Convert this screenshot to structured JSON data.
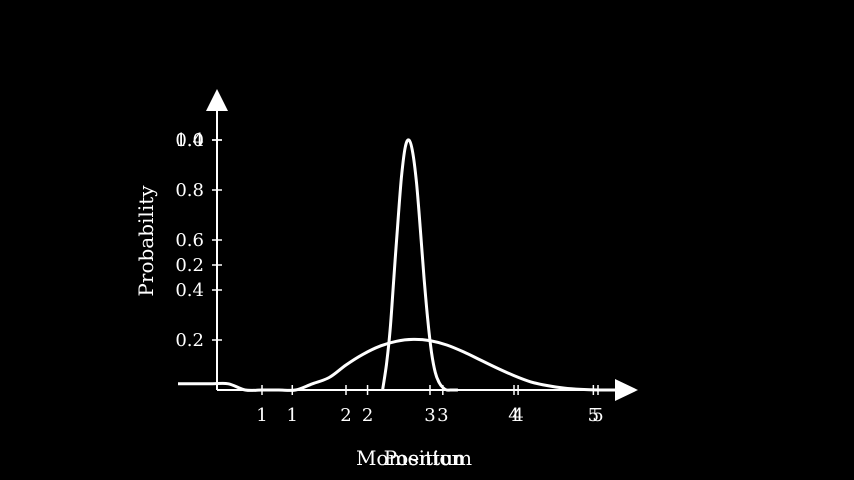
{
  "chart_data": [
    {
      "type": "line",
      "title": "",
      "ylabel": "Probability",
      "xlabel": "Position",
      "ylim": [
        0,
        1.0
      ],
      "xlim": [
        0.5,
        6.0
      ],
      "grid": false,
      "x_tick_labels": [
        {
          "value": 1.5,
          "label": "1"
        },
        {
          "value": 2.5,
          "label": "2"
        },
        {
          "value": 3.5,
          "label": "3"
        },
        {
          "value": 4.5,
          "label": "4"
        },
        {
          "value": 5.5,
          "label": "5"
        }
      ],
      "y_tick_labels": [
        {
          "value": 0.2,
          "label": "0.2"
        },
        {
          "value": 0.4,
          "label": "0.4"
        },
        {
          "value": 0.6,
          "label": "0.6"
        },
        {
          "value": 0.8,
          "label": "0.8"
        },
        {
          "value": 1.0,
          "label": "1.0"
        }
      ],
      "series": [
        {
          "x": [
            2.7,
            2.75,
            2.8,
            2.85,
            2.9,
            2.95,
            3.0,
            3.05,
            3.1,
            3.15,
            3.2,
            3.25,
            3.3,
            3.35,
            3.4,
            3.45,
            3.5,
            3.55,
            3.6,
            3.65,
            3.7
          ],
          "y": [
            0.0,
            0.1,
            0.24,
            0.45,
            0.66,
            0.85,
            0.97,
            1.0,
            0.95,
            0.83,
            0.65,
            0.45,
            0.28,
            0.15,
            0.07,
            0.03,
            0.01,
            0.0,
            0.0,
            0.0,
            0.0
          ]
        }
      ]
    },
    {
      "type": "line",
      "title": "",
      "ylabel": "",
      "xlabel": "Momentum",
      "ylim": [
        0,
        0.4
      ],
      "xlim": [
        0.5,
        6.0
      ],
      "grid": false,
      "x_tick_labels": [
        {
          "value": 1.5,
          "label": "1"
        },
        {
          "value": 2.5,
          "label": "2"
        },
        {
          "value": 3.5,
          "label": "3"
        },
        {
          "value": 4.5,
          "label": "4"
        },
        {
          "value": 5.5,
          "label": "5"
        }
      ],
      "y_tick_labels": [
        {
          "value": 0.2,
          "label": "0.2"
        },
        {
          "value": 0.4,
          "label": "0.4"
        }
      ],
      "series": [
        {
          "x": [
            0.5,
            0.7,
            0.9,
            1.1,
            1.3,
            1.5,
            1.7,
            1.9,
            2.1,
            2.3,
            2.5,
            2.7,
            2.9,
            3.1,
            3.3,
            3.5,
            3.7,
            3.9,
            4.1,
            4.3,
            4.5,
            4.7,
            4.9,
            5.1,
            5.3,
            5.5,
            5.7,
            5.9
          ],
          "y": [
            0.01,
            0.01,
            0.01,
            0.01,
            0.0,
            0.0,
            0.0,
            0.0,
            0.01,
            0.02,
            0.04,
            0.057,
            0.07,
            0.078,
            0.081,
            0.079,
            0.072,
            0.061,
            0.048,
            0.035,
            0.023,
            0.013,
            0.007,
            0.003,
            0.001,
            0.0,
            0.0,
            0.0
          ]
        }
      ]
    }
  ]
}
